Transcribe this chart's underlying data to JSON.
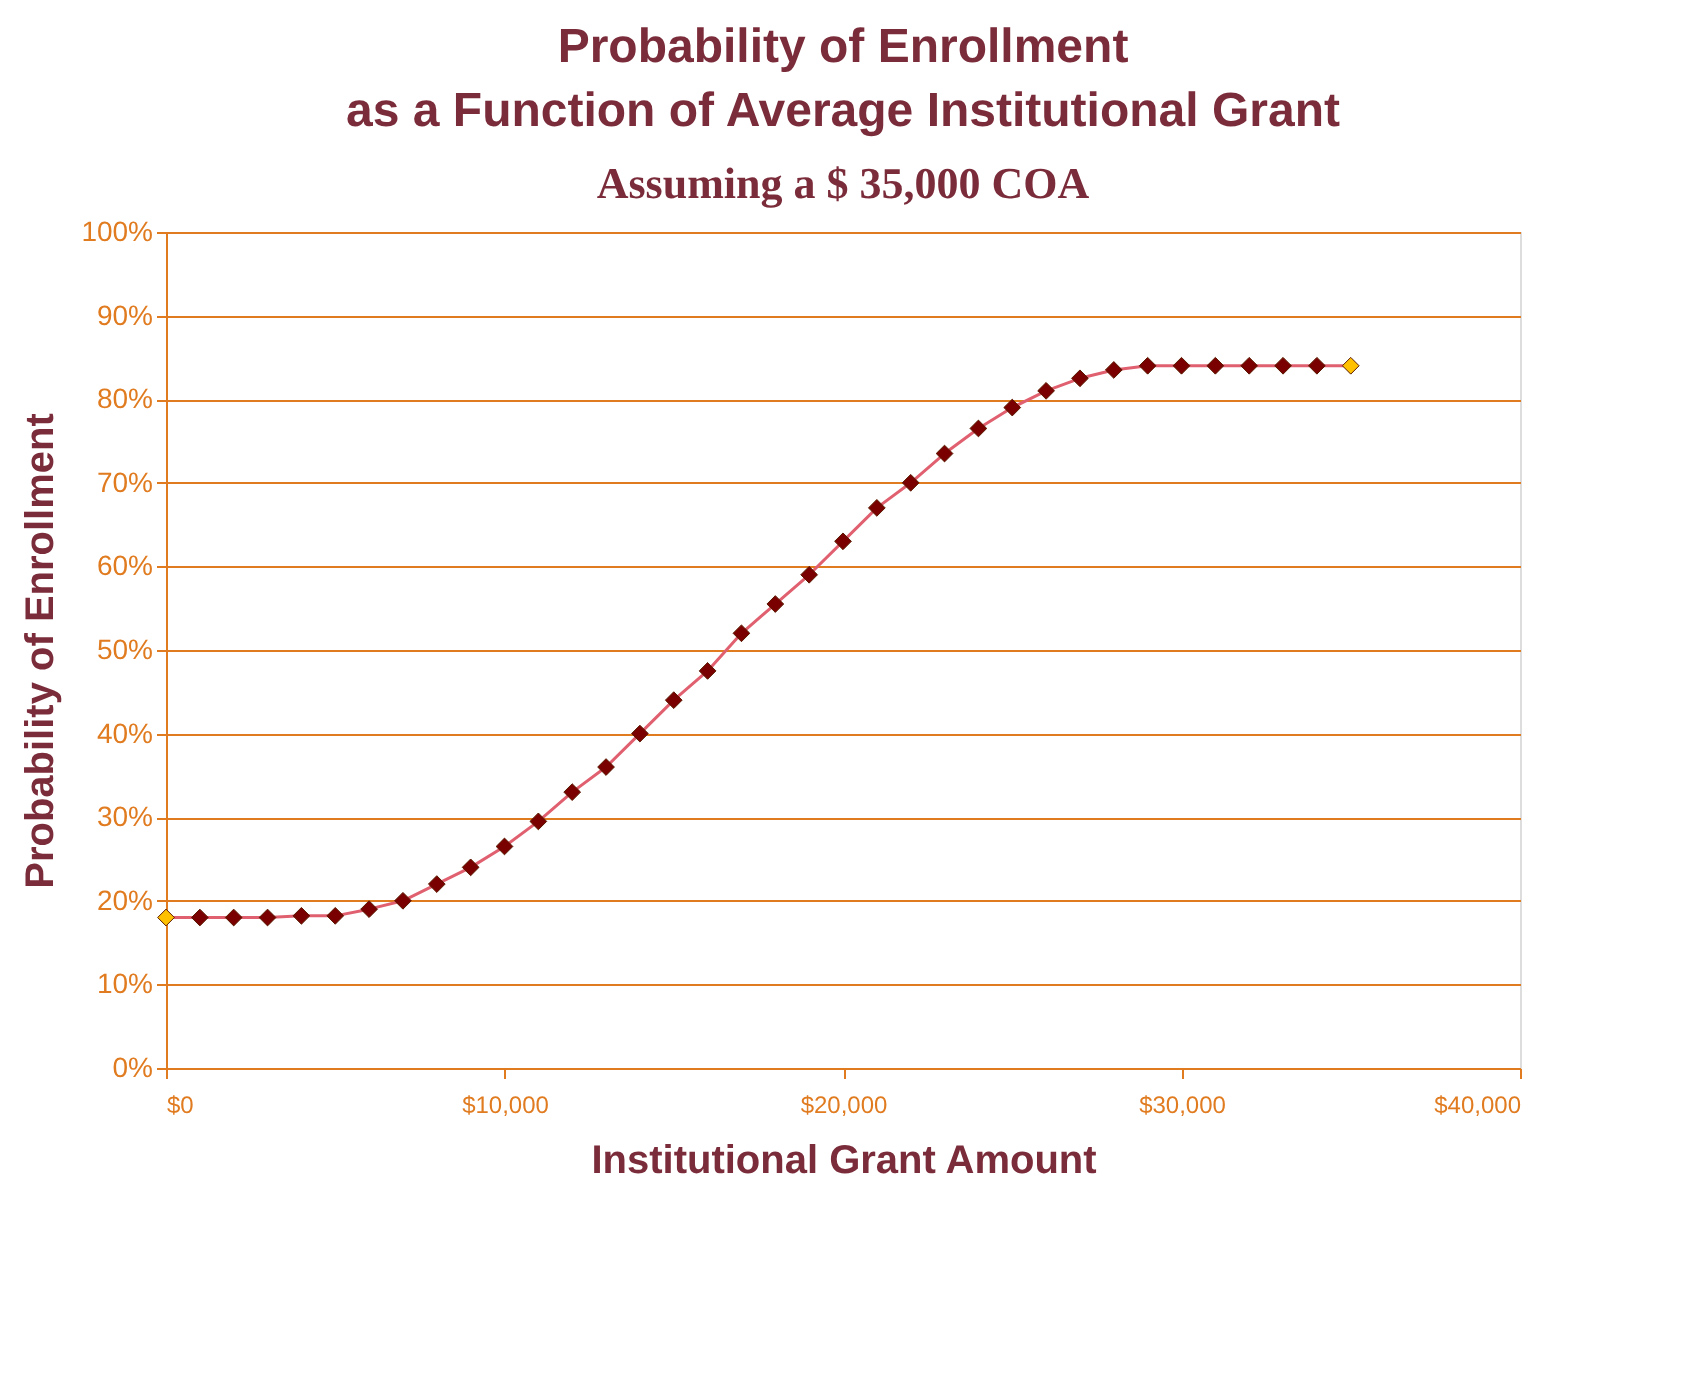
{
  "chart_data": {
    "type": "line",
    "title": [
      "Probability of Enrollment",
      "as a Function of Average Institutional Grant"
    ],
    "subtitle": "Assuming a $ 35,000 COA",
    "xlabel": "Institutional Grant Amount",
    "ylabel": "Probability of Enrollment",
    "x": [
      0,
      1000,
      2000,
      3000,
      4000,
      5000,
      6000,
      7000,
      8000,
      9000,
      10000,
      11000,
      12000,
      13000,
      14000,
      15000,
      16000,
      17000,
      18000,
      19000,
      20000,
      21000,
      22000,
      23000,
      24000,
      25000,
      26000,
      27000,
      28000,
      29000,
      30000,
      31000,
      32000,
      33000,
      34000,
      35000
    ],
    "series": [
      {
        "color": "#e06070",
        "colors": [
          "#ffc000",
          "#7a0000",
          "#7a0000",
          "#7a0000",
          "#7a0000",
          "#7a0000",
          "#7a0000",
          "#7a0000",
          "#7a0000",
          "#7a0000",
          "#7a0000",
          "#7a0000",
          "#7a0000",
          "#7a0000",
          "#7a0000",
          "#7a0000",
          "#7a0000",
          "#7a0000",
          "#7a0000",
          "#7a0000",
          "#7a0000",
          "#7a0000",
          "#7a0000",
          "#7a0000",
          "#7a0000",
          "#7a0000",
          "#7a0000",
          "#7a0000",
          "#7a0000",
          "#7a0000",
          "#7a0000",
          "#7a0000",
          "#7a0000",
          "#7a0000",
          "#7a0000",
          "#ffc000"
        ],
        "values": [
          18,
          18,
          18,
          18,
          18.2,
          18.2,
          19,
          20,
          22,
          24,
          26.5,
          29.5,
          33,
          36,
          40,
          44,
          47.5,
          52,
          55.5,
          59,
          63,
          67,
          70,
          73.5,
          76.5,
          79,
          81,
          82.5,
          83.5,
          84,
          84,
          84,
          84,
          84,
          84,
          84
        ]
      }
    ],
    "xlim": [
      0,
      40000
    ],
    "xticks": [
      {
        "value": 0,
        "label": "$0"
      },
      {
        "value": 10000,
        "label": "$10,000"
      },
      {
        "value": 20000,
        "label": "$20,000"
      },
      {
        "value": 30000,
        "label": "$30,000"
      },
      {
        "value": 40000,
        "label": "$40,000"
      }
    ],
    "ylim": [
      0,
      100
    ],
    "yticks": [
      {
        "value": 0,
        "label": "0%"
      },
      {
        "value": 10,
        "label": "10%"
      },
      {
        "value": 20,
        "label": "20%"
      },
      {
        "value": 30,
        "label": "30%"
      },
      {
        "value": 40,
        "label": "40%"
      },
      {
        "value": 50,
        "label": "50%"
      },
      {
        "value": 60,
        "label": "60%"
      },
      {
        "value": 70,
        "label": "70%"
      },
      {
        "value": 80,
        "label": "80%"
      },
      {
        "value": 90,
        "label": "90%"
      },
      {
        "value": 100,
        "label": "100%"
      }
    ],
    "grid": "y",
    "marker": "diamond",
    "line_style": "solid"
  }
}
